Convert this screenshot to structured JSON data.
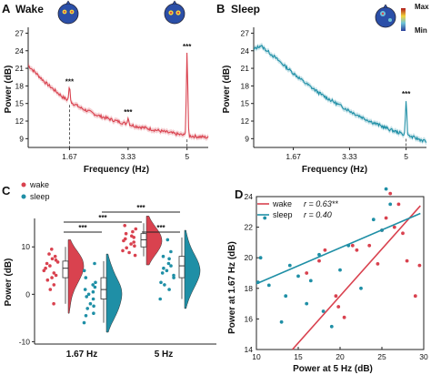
{
  "chart_data": [
    {
      "panel": "A",
      "type": "line",
      "title": "Wake",
      "xlabel": "Frequency (Hz)",
      "ylabel": "Power (dB)",
      "xlim": [
        0.5,
        5.6
      ],
      "ylim": [
        7.5,
        28
      ],
      "yticks": [
        9,
        12,
        15,
        18,
        21,
        24,
        27
      ],
      "xticks": [
        "1.67",
        "3.33",
        "5"
      ],
      "xtick_values": [
        1.67,
        3.33,
        5
      ],
      "color": "#d9424f",
      "baseline": [
        [
          0.5,
          21.5
        ],
        [
          1.0,
          18.5
        ],
        [
          1.5,
          16.0
        ],
        [
          2.0,
          14.2
        ],
        [
          2.5,
          12.9
        ],
        [
          3.0,
          12.0
        ],
        [
          3.5,
          11.2
        ],
        [
          4.0,
          10.6
        ],
        [
          4.5,
          10.0
        ],
        [
          5.0,
          9.5
        ],
        [
          5.6,
          9.2
        ]
      ],
      "peaks": [
        {
          "x": 1.67,
          "y": 17.8,
          "label": "***"
        },
        {
          "x": 3.33,
          "y": 12.6,
          "label": "***"
        },
        {
          "x": 5.0,
          "y": 23.8,
          "label": "***"
        }
      ],
      "dashed_x": [
        1.67,
        5.0
      ]
    },
    {
      "panel": "B",
      "type": "line",
      "title": "Sleep",
      "xlabel": "Frequency (Hz)",
      "ylabel": "Power (dB)",
      "xlim": [
        0.5,
        5.6
      ],
      "ylim": [
        7.5,
        28
      ],
      "yticks": [
        9,
        12,
        15,
        18,
        21,
        24,
        27
      ],
      "xticks": [
        "1.67",
        "3.33",
        "5"
      ],
      "xtick_values": [
        1.67,
        3.33,
        5
      ],
      "color": "#1f8fa6",
      "colorbar": {
        "max_label": "Max",
        "min_label": "Min"
      },
      "baseline": [
        [
          0.5,
          24.2
        ],
        [
          0.7,
          24.9
        ],
        [
          1.0,
          23.5
        ],
        [
          1.5,
          21.0
        ],
        [
          2.0,
          18.6
        ],
        [
          2.5,
          16.5
        ],
        [
          3.0,
          14.8
        ],
        [
          3.5,
          13.2
        ],
        [
          4.0,
          11.8
        ],
        [
          4.5,
          10.6
        ],
        [
          5.0,
          9.6
        ],
        [
          5.6,
          8.5
        ]
      ],
      "peaks": [
        {
          "x": 5.0,
          "y": 15.7,
          "label": "***"
        }
      ],
      "dashed_x": [
        5.0
      ]
    },
    {
      "panel": "C",
      "type": "scatter",
      "ylabel": "Power (dB)",
      "ylim": [
        -10.5,
        16
      ],
      "yticks": [
        -10,
        0,
        10
      ],
      "categories": [
        "1.67 Hz",
        "5 Hz"
      ],
      "legend": [
        {
          "name": "wake",
          "color": "#d9424f"
        },
        {
          "name": "sleep",
          "color": "#1f8fa6"
        }
      ],
      "significance": [
        {
          "from": "wake-1.67",
          "to": "sleep-1.67",
          "label": "***"
        },
        {
          "from": "wake-1.67",
          "to": "wake-5",
          "label": "***"
        },
        {
          "from": "sleep-1.67",
          "to": "sleep-5",
          "label": "***"
        },
        {
          "from": "wake-5",
          "to": "sleep-5",
          "label": "***"
        }
      ],
      "groups": [
        {
          "id": "wake-1.67",
          "series": "wake",
          "median": 5.5,
          "q1": 3.5,
          "q3": 7.0,
          "wmin": -2,
          "wmax": 10,
          "points": [
            9.5,
            8.5,
            8.0,
            7.5,
            7.2,
            6.8,
            6.5,
            6.0,
            5.5,
            5.0,
            4.5,
            4.0,
            3.5,
            3.0,
            2.0,
            1.0,
            -2.0
          ]
        },
        {
          "id": "sleep-1.67",
          "series": "sleep",
          "median": 1.0,
          "q1": -1.0,
          "q3": 3.5,
          "wmin": -6,
          "wmax": 7,
          "points": [
            6.5,
            5.0,
            3.5,
            2.5,
            2.0,
            1.5,
            1.0,
            0.5,
            0.0,
            -0.5,
            -1.0,
            -2.0,
            -2.5,
            -3.0,
            -4.0,
            -4.5,
            -6.0
          ]
        },
        {
          "id": "wake-5",
          "series": "wake",
          "median": 11.5,
          "q1": 10.0,
          "q3": 12.8,
          "wmin": 8,
          "wmax": 15,
          "points": [
            14.5,
            13.8,
            13.2,
            12.8,
            12.3,
            12.0,
            11.7,
            11.3,
            11.0,
            10.6,
            10.2,
            9.8,
            9.2,
            8.8,
            8.2
          ]
        },
        {
          "id": "sleep-5",
          "series": "sleep",
          "median": 6.0,
          "q1": 3.5,
          "q3": 8.0,
          "wmin": -1,
          "wmax": 12,
          "points": [
            11.5,
            9.0,
            8.0,
            7.5,
            6.5,
            6.0,
            5.5,
            5.0,
            4.5,
            4.0,
            3.5,
            2.5,
            2.0,
            1.0,
            -1.0
          ]
        }
      ]
    },
    {
      "panel": "D",
      "type": "scatter",
      "xlabel": "Power at 5 Hz (dB)",
      "ylabel": "Power at 1.67 Hz (dB)",
      "xlim": [
        10,
        30
      ],
      "ylim": [
        14,
        24
      ],
      "xticks": [
        10,
        15,
        20,
        25,
        30
      ],
      "yticks": [
        14,
        16,
        18,
        20,
        22,
        24
      ],
      "series": [
        {
          "name": "wake",
          "stat": "r = 0.63**",
          "color": "#d9424f",
          "fit": [
            [
              14.3,
              14.0
            ],
            [
              29.6,
              23.4
            ]
          ],
          "points": [
            [
              16.0,
              19.0
            ],
            [
              17.5,
              19.8
            ],
            [
              18.2,
              20.5
            ],
            [
              19.5,
              17.5
            ],
            [
              19.8,
              16.8
            ],
            [
              20.5,
              16.1
            ],
            [
              21.5,
              20.8
            ],
            [
              22.0,
              20.5
            ],
            [
              23.5,
              20.8
            ],
            [
              24.5,
              19.6
            ],
            [
              25.0,
              21.8
            ],
            [
              25.5,
              22.6
            ],
            [
              26.5,
              22.0
            ],
            [
              27.5,
              21.6
            ],
            [
              28.0,
              19.8
            ],
            [
              29.0,
              17.5
            ],
            [
              29.5,
              19.5
            ],
            [
              27.0,
              23.5
            ],
            [
              26.0,
              24.2
            ]
          ]
        },
        {
          "name": "sleep",
          "stat": "r = 0.40",
          "color": "#1f8fa6",
          "fit": [
            [
              10.0,
              18.3
            ],
            [
              29.6,
              22.9
            ]
          ],
          "points": [
            [
              10.2,
              18.4
            ],
            [
              10.5,
              20.0
            ],
            [
              11.0,
              22.6
            ],
            [
              11.5,
              18.2
            ],
            [
              13.0,
              15.8
            ],
            [
              13.5,
              17.5
            ],
            [
              14.0,
              19.5
            ],
            [
              15.0,
              18.8
            ],
            [
              16.0,
              17.0
            ],
            [
              16.5,
              18.5
            ],
            [
              17.5,
              20.2
            ],
            [
              18.0,
              16.5
            ],
            [
              19.0,
              15.5
            ],
            [
              20.0,
              19.2
            ],
            [
              21.0,
              20.8
            ],
            [
              22.5,
              18.0
            ],
            [
              24.0,
              22.5
            ],
            [
              25.0,
              21.8
            ],
            [
              25.5,
              24.5
            ],
            [
              26.0,
              23.5
            ]
          ]
        }
      ]
    }
  ]
}
